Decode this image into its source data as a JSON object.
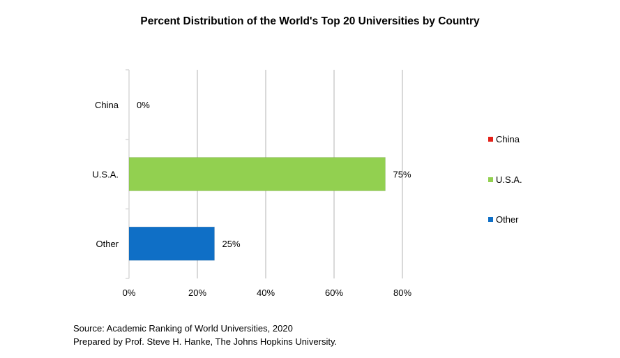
{
  "chart_data": {
    "type": "bar",
    "orientation": "horizontal",
    "title": "Percent Distribution of the World's Top 20 Universities by Country",
    "categories": [
      "China",
      "U.S.A.",
      "Other"
    ],
    "values": [
      0,
      75,
      25
    ],
    "value_labels": [
      "0%",
      "75%",
      "25%"
    ],
    "colors": [
      "#e32119",
      "#92d050",
      "#0f6fc6"
    ],
    "xlim": [
      0,
      80
    ],
    "xticks": [
      0,
      20,
      40,
      60,
      80
    ],
    "xtick_labels": [
      "0%",
      "20%",
      "40%",
      "60%",
      "80%"
    ],
    "grid": true,
    "legend": {
      "position": "right",
      "entries": [
        {
          "label": "China",
          "color": "#e32119"
        },
        {
          "label": "U.S.A.",
          "color": "#92d050"
        },
        {
          "label": "Other",
          "color": "#0f6fc6"
        }
      ]
    },
    "xlabel": "",
    "ylabel": ""
  },
  "footer": {
    "source": "Source: Academic Ranking of World Universities, 2020",
    "prepared_by": "Prepared by Prof. Steve H. Hanke, The Johns Hopkins University."
  }
}
